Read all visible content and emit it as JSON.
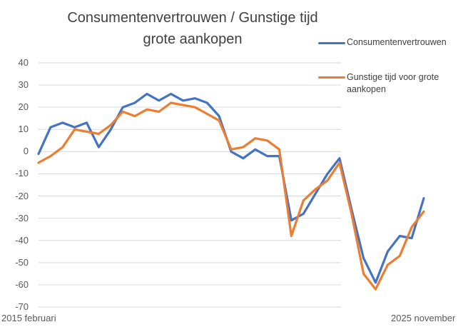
{
  "title": "Consumentenvertrouwen / Gunstige tijd grote aankopen",
  "legend": [
    {
      "label": "Consumentenvertrouwen",
      "color": "#4472C4"
    },
    {
      "label": "Gunstige tijd voor grote aankopen",
      "color": "#ED7D31"
    }
  ],
  "x_start_label": "2015 februari",
  "x_end_label": "2025 november",
  "y_ticks": [
    "40",
    "30",
    "20",
    "10",
    "0",
    "-10",
    "-20",
    "-30",
    "-40",
    "-50",
    "-60",
    "-70"
  ],
  "chart_data": {
    "type": "line",
    "title": "Consumentenvertrouwen / Gunstige tijd grote aankopen",
    "xlabel": "",
    "ylabel": "",
    "ylim": [
      -70,
      40
    ],
    "grid": true,
    "legend_position": "right",
    "x_range": [
      "2015 februari",
      "2025 november"
    ],
    "x": [
      "2015-02",
      "2015-06",
      "2015-10",
      "2016-02",
      "2016-06",
      "2016-10",
      "2017-02",
      "2017-06",
      "2017-10",
      "2018-02",
      "2018-06",
      "2018-10",
      "2019-02",
      "2019-06",
      "2019-10",
      "2020-02",
      "2020-06",
      "2020-10",
      "2021-02",
      "2021-06",
      "2021-10",
      "2022-02",
      "2022-06",
      "2022-10",
      "2023-02",
      "2023-06",
      "2023-10",
      "2024-02",
      "2024-06",
      "2024-10",
      "2025-02",
      "2025-06",
      "2025-11"
    ],
    "series": [
      {
        "name": "Consumentenvertrouwen",
        "color": "#4472C4",
        "values": [
          -1,
          11,
          13,
          11,
          13,
          2,
          10,
          20,
          22,
          26,
          23,
          26,
          23,
          24,
          22,
          16,
          0,
          -3,
          1,
          -2,
          -2,
          -31,
          -28,
          -19,
          -10,
          -3,
          -26,
          -48,
          -59,
          -45,
          -38,
          -39,
          -21
        ]
      },
      {
        "name": "Gunstige tijd voor grote aankopen",
        "color": "#ED7D31",
        "values": [
          -5,
          -2,
          2,
          10,
          9,
          8,
          12,
          18,
          16,
          19,
          18,
          22,
          21,
          20,
          17,
          14,
          1,
          2,
          6,
          5,
          1,
          -38,
          -22,
          -17,
          -13,
          -5,
          -28,
          -55,
          -62,
          -51,
          -47,
          -34,
          -27
        ]
      }
    ]
  }
}
